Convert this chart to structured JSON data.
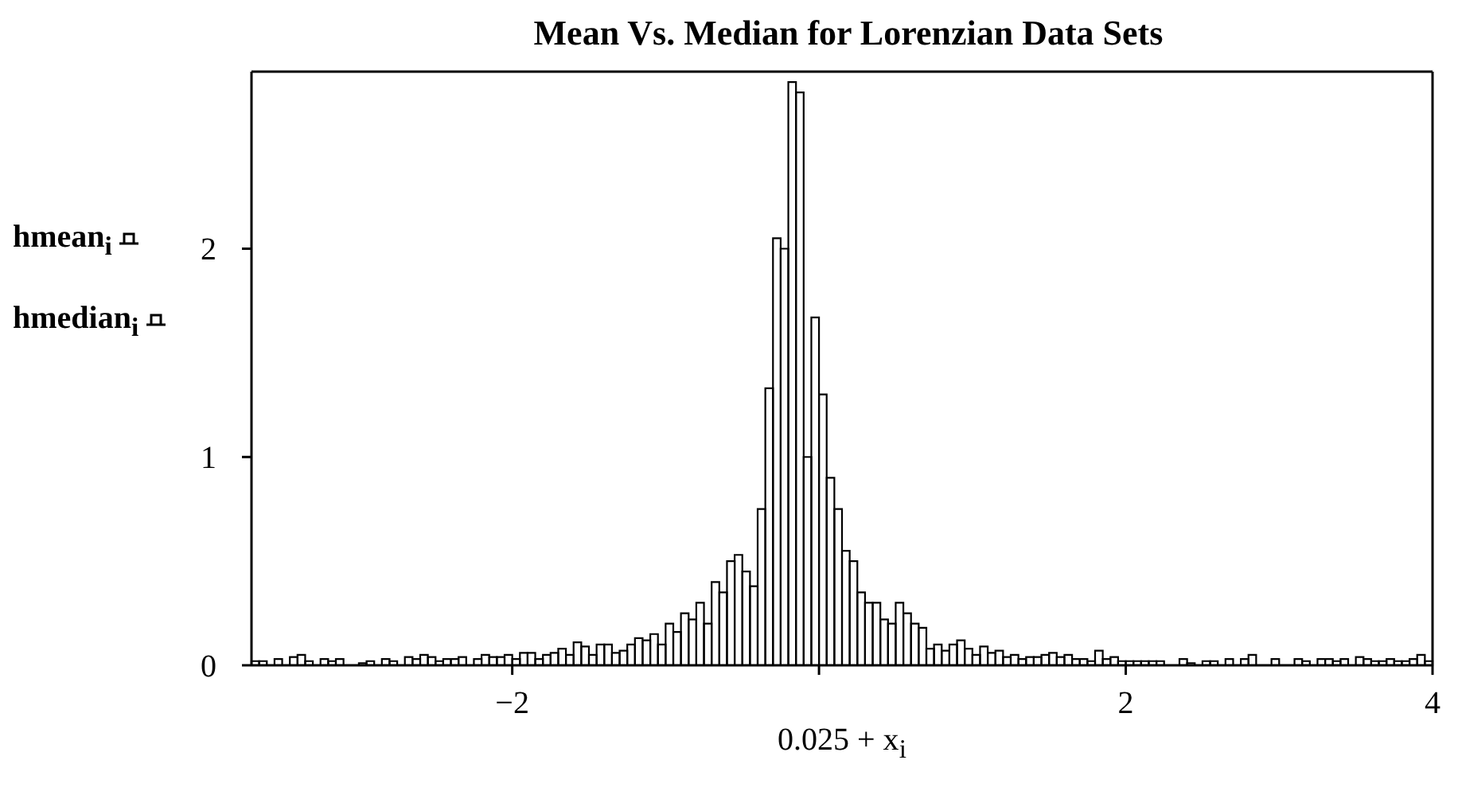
{
  "chart_data": {
    "type": "histogram",
    "title": "Mean Vs. Median for Lorenzian Data Sets",
    "xlabel": "0.025 + x$_{i}$",
    "bins": [
      -3.7,
      -3.6,
      -3.5,
      -3.4,
      -3.3,
      -3.2,
      -3.1,
      -3.0,
      -2.9,
      -2.8,
      -2.7,
      -2.6,
      -2.5,
      -2.4,
      -2.3,
      -2.2,
      -2.1,
      -2.0,
      -1.9,
      -1.8,
      -1.7,
      -1.6,
      -1.5,
      -1.4,
      -1.3,
      -1.2,
      -1.1,
      -1.0,
      -0.9,
      -0.8,
      -0.7,
      -0.6,
      -0.5,
      -0.4,
      -0.3,
      -0.2,
      -0.1,
      0.0,
      0.1,
      0.2,
      0.3,
      0.4,
      0.5,
      0.6,
      0.7,
      0.8,
      0.9,
      1.0,
      1.1,
      1.2,
      1.3,
      1.4,
      1.5,
      1.6,
      1.7,
      1.8,
      1.9,
      2.0,
      2.1,
      2.2,
      2.3,
      2.4,
      2.5,
      2.6,
      2.7,
      2.8,
      2.9,
      3.0,
      3.1,
      3.2,
      3.3,
      3.4,
      3.5,
      3.6,
      3.7,
      3.8,
      3.9,
      4.0
    ],
    "series": [
      {
        "name": "hmean$_{i}$",
        "color": "#000000",
        "values": [
          0.02,
          0,
          0,
          0.05,
          0,
          0.02,
          0,
          0.01,
          0,
          0.02,
          0.04,
          0.05,
          0.02,
          0.03,
          0,
          0.05,
          0.04,
          0.03,
          0.06,
          0.05,
          0.08,
          0.11,
          0.05,
          0.1,
          0.07,
          0.13,
          0.15,
          0.2,
          0.25,
          0.3,
          0.4,
          0.5,
          0.45,
          0.75,
          2.05,
          2.8,
          1.0,
          1.3,
          0.75,
          0.5,
          0.3,
          0.22,
          0.3,
          0.2,
          0.08,
          0.07,
          0.12,
          0.05,
          0.06,
          0.04,
          0.03,
          0.04,
          0.06,
          0.05,
          0.03,
          0.07,
          0.04,
          0.02,
          0.02,
          0.02,
          0,
          0.01,
          0.02,
          0,
          0,
          0.05,
          0,
          0,
          0.03,
          0,
          0.03,
          0.03,
          0.04,
          0.02,
          0.03,
          0.02,
          0.05
        ]
      },
      {
        "name": "hmedian$_{i}$",
        "color": "#000000",
        "values": [
          0.02,
          0.03,
          0.04,
          0.02,
          0.03,
          0.03,
          0,
          0.02,
          0.03,
          0,
          0.03,
          0.04,
          0.03,
          0.04,
          0.03,
          0.04,
          0.05,
          0.06,
          0.03,
          0.06,
          0.05,
          0.09,
          0.1,
          0.06,
          0.1,
          0.12,
          0.1,
          0.16,
          0.22,
          0.2,
          0.35,
          0.53,
          0.38,
          1.33,
          2.0,
          2.75,
          1.67,
          0.9,
          0.55,
          0.35,
          0.3,
          0.2,
          0.25,
          0.18,
          0.1,
          0.1,
          0.08,
          0.09,
          0.07,
          0.05,
          0.04,
          0.05,
          0.04,
          0.03,
          0.02,
          0.03,
          0.02,
          0.02,
          0.02,
          0,
          0.03,
          0,
          0.02,
          0.03,
          0.03,
          0,
          0.03,
          0,
          0.02,
          0.03,
          0.02,
          0,
          0.03,
          0.02,
          0.02,
          0.03,
          0.02
        ]
      }
    ],
    "xlim": [
      -3.7,
      4.0
    ],
    "xticks": [
      {
        "value": -2,
        "label": "−2"
      },
      {
        "value": 0,
        "label": null
      },
      2,
      4
    ],
    "ylim": [
      0,
      2.85
    ],
    "yticks": [
      0,
      1,
      2
    ],
    "grid": false,
    "legend": "left"
  }
}
